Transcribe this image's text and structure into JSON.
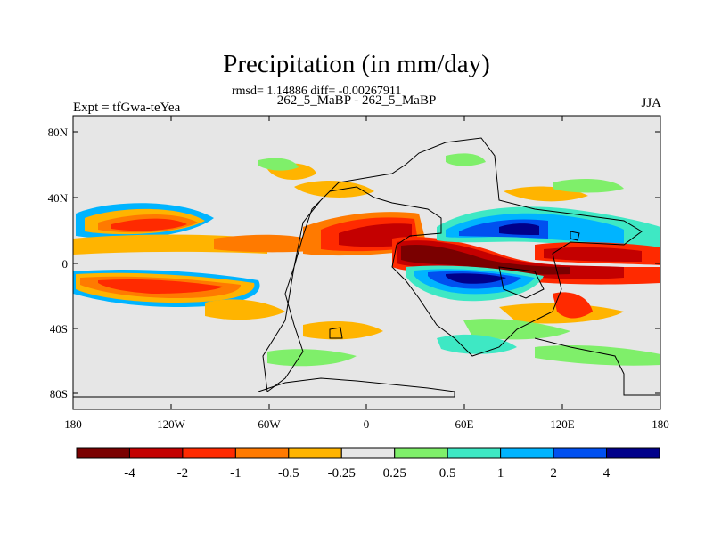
{
  "title": "Precipitation (in mm/day)",
  "stats": "rmsd= 1.14886 diff= -0.00267911",
  "subtitle": "262_5_MaBP - 262_5_MaBP",
  "left_label": "Expt = tfGwa-teYea",
  "right_label": "JJA",
  "lat_ticks": [
    "80N",
    "40N",
    "0",
    "40S",
    "80S"
  ],
  "lon_ticks": [
    "180",
    "120W",
    "60W",
    "0",
    "60E",
    "120E",
    "180"
  ],
  "colorbar": {
    "colors": [
      "#7a0000",
      "#c40000",
      "#ff2a00",
      "#ff7a00",
      "#ffb400",
      "#e6e6e6",
      "#7fef6a",
      "#3ee8c4",
      "#00b4ff",
      "#0050f0",
      "#00008a"
    ],
    "labels": [
      "-4",
      "-2",
      "-1",
      "-0.5",
      "-0.25",
      "0.25",
      "0.5",
      "1",
      "2",
      "4"
    ]
  }
}
